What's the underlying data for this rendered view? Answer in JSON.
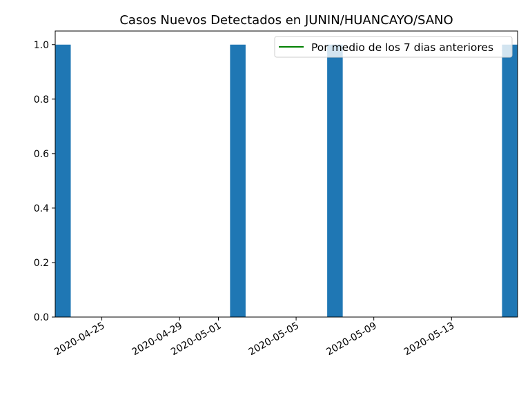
{
  "chart_data": {
    "type": "bar",
    "title": "Casos Nuevos Detectados en JUNIN/HUANCAYO/SANO",
    "xlabel": "",
    "ylabel": "",
    "x_axis_type": "date",
    "xlim": [
      "2020-04-23",
      "2020-05-16"
    ],
    "ylim": [
      0,
      1.05
    ],
    "x_tick_labels": [
      "2020-04-25",
      "2020-04-29",
      "2020-05-01",
      "2020-05-05",
      "2020-05-09",
      "2020-05-13"
    ],
    "y_tick_labels": [
      "0.0",
      "0.2",
      "0.4",
      "0.6",
      "0.8",
      "1.0"
    ],
    "grid": false,
    "legend_position": "top-right",
    "bar_color": "#1f77b4",
    "series": [
      {
        "type": "bar",
        "x": [
          "2020-04-23",
          "2020-05-02",
          "2020-05-07",
          "2020-05-16"
        ],
        "values": [
          1,
          1,
          1,
          1
        ]
      },
      {
        "type": "line",
        "name": "Por medio de los 7 dias anteriores",
        "color": "#008000",
        "x": [],
        "values": []
      }
    ]
  }
}
